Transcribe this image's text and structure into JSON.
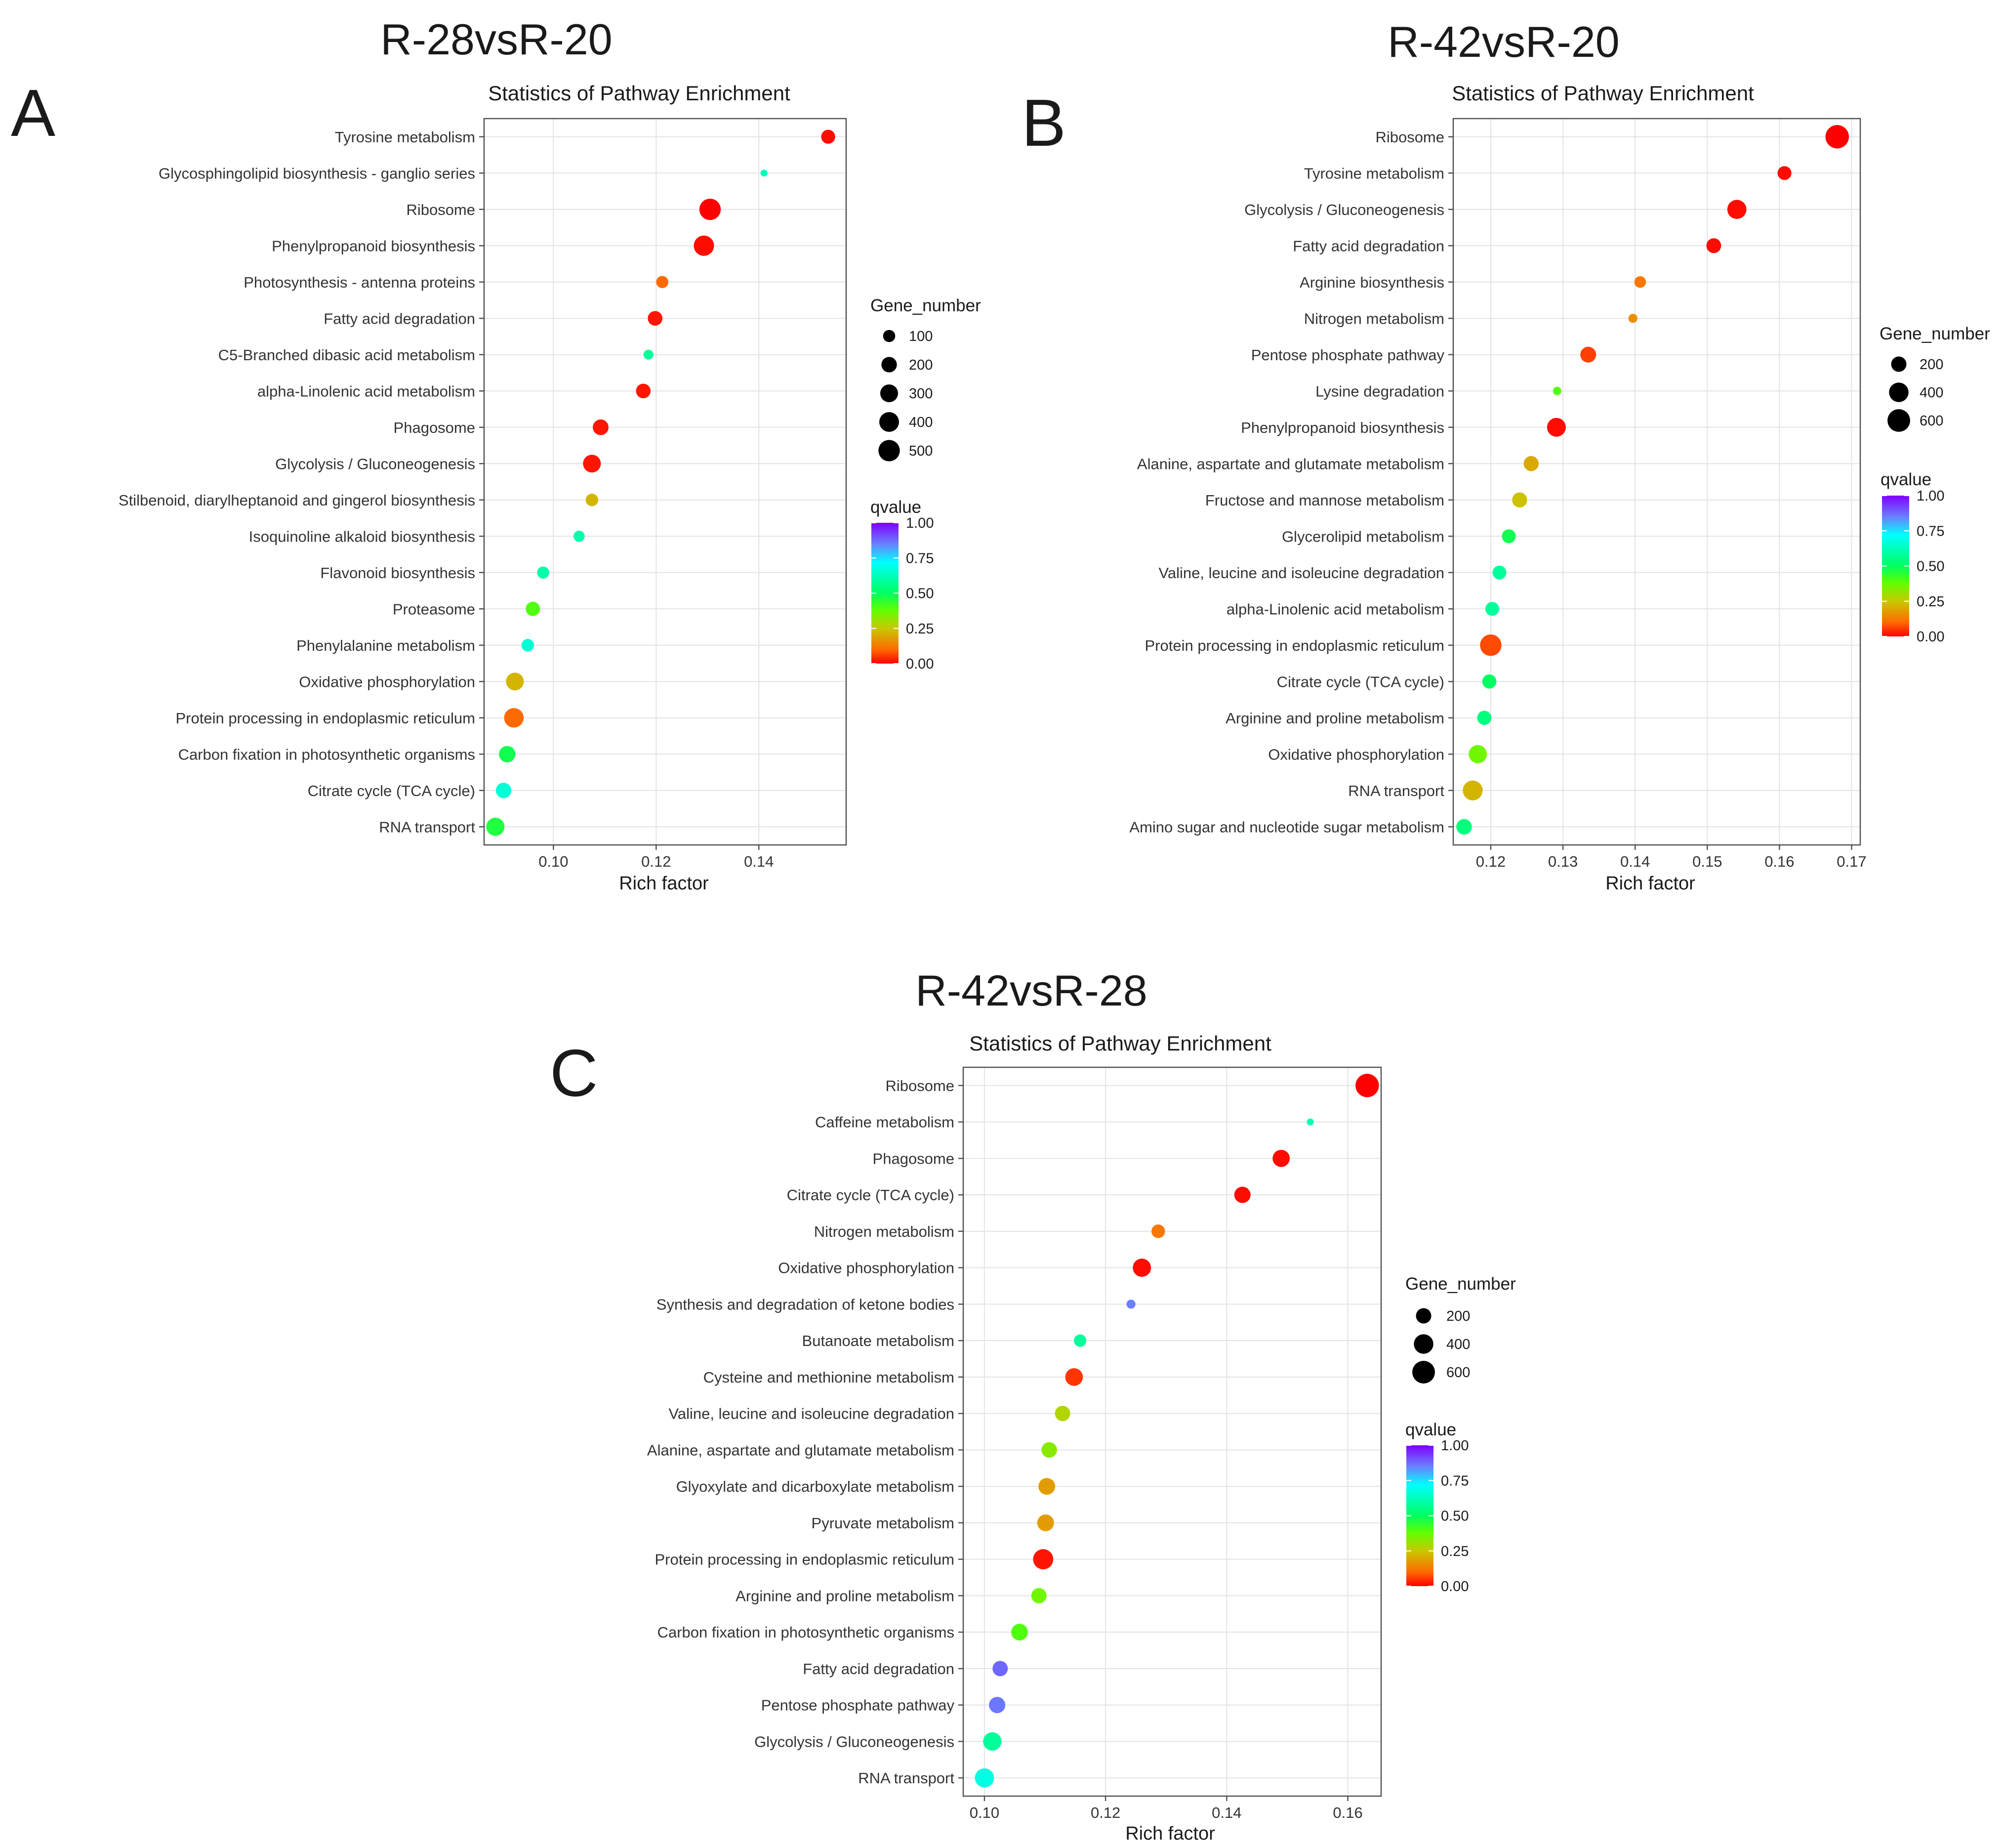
{
  "figure": {
    "background": "#ffffff",
    "legend_size_title": "Gene_number",
    "legend_color_title": "qvalue",
    "color_scale": {
      "stops": [
        "#ff0000",
        "#ff8000",
        "#80ff00",
        "#00ff80",
        "#00ffff",
        "#8060ff",
        "#8000ff"
      ],
      "labels": [
        "0.00",
        "0.25",
        "0.50",
        "0.75",
        "1.00"
      ]
    }
  },
  "chart_data": [
    {
      "type": "scatter",
      "panel_label": "A",
      "panel_title": "R-28vsR-20",
      "title": "Statistics of Pathway Enrichment",
      "xlabel": "Rich factor",
      "ylabel": "",
      "xlim": [
        0.0865,
        0.157
      ],
      "xticks": [
        0.1,
        0.12,
        0.14
      ],
      "xtick_labels": [
        "0.10",
        "0.12",
        "0.14"
      ],
      "size_legend": {
        "values": [
          100,
          200,
          300,
          400,
          500
        ],
        "labels": [
          "100",
          "200",
          "300",
          "400",
          "500"
        ]
      },
      "size_domain": [
        40,
        520
      ],
      "points": [
        {
          "pathway": "Tyrosine metabolism",
          "rich_factor": 0.1535,
          "gene_number": 150,
          "qvalue": 0.01
        },
        {
          "pathway": "Glycosphingolipid biosynthesis - ganglio series",
          "rich_factor": 0.141,
          "gene_number": 40,
          "qvalue": 0.62
        },
        {
          "pathway": "Ribosome",
          "rich_factor": 0.1305,
          "gene_number": 500,
          "qvalue": 0.0
        },
        {
          "pathway": "Phenylpropanoid biosynthesis",
          "rich_factor": 0.1293,
          "gene_number": 430,
          "qvalue": 0.01
        },
        {
          "pathway": "Photosynthesis - antenna proteins",
          "rich_factor": 0.1212,
          "gene_number": 100,
          "qvalue": 0.1
        },
        {
          "pathway": "Fatty acid degradation",
          "rich_factor": 0.1198,
          "gene_number": 170,
          "qvalue": 0.02
        },
        {
          "pathway": "C5-Branched dibasic acid metabolism",
          "rich_factor": 0.1185,
          "gene_number": 60,
          "qvalue": 0.58
        },
        {
          "pathway": "alpha-Linolenic acid metabolism",
          "rich_factor": 0.1175,
          "gene_number": 170,
          "qvalue": 0.02
        },
        {
          "pathway": "Phagosome",
          "rich_factor": 0.1092,
          "gene_number": 210,
          "qvalue": 0.02
        },
        {
          "pathway": "Glycolysis / Gluconeogenesis",
          "rich_factor": 0.1075,
          "gene_number": 300,
          "qvalue": 0.02
        },
        {
          "pathway": "Stilbenoid, diarylheptanoid and gingerol biosynthesis",
          "rich_factor": 0.1075,
          "gene_number": 110,
          "qvalue": 0.22
        },
        {
          "pathway": "Isoquinoline alkaloid biosynthesis",
          "rich_factor": 0.105,
          "gene_number": 80,
          "qvalue": 0.6
        },
        {
          "pathway": "Flavonoid biosynthesis",
          "rich_factor": 0.098,
          "gene_number": 100,
          "qvalue": 0.6
        },
        {
          "pathway": "Proteasome",
          "rich_factor": 0.096,
          "gene_number": 160,
          "qvalue": 0.4
        },
        {
          "pathway": "Phenylalanine metabolism",
          "rich_factor": 0.095,
          "gene_number": 110,
          "qvalue": 0.66
        },
        {
          "pathway": "Oxidative phosphorylation",
          "rich_factor": 0.0925,
          "gene_number": 300,
          "qvalue": 0.22
        },
        {
          "pathway": "Protein processing in endoplasmic reticulum",
          "rich_factor": 0.0923,
          "gene_number": 390,
          "qvalue": 0.1
        },
        {
          "pathway": "Carbon fixation in photosynthetic organisms",
          "rich_factor": 0.091,
          "gene_number": 240,
          "qvalue": 0.48
        },
        {
          "pathway": "Citrate cycle (TCA cycle)",
          "rich_factor": 0.0903,
          "gene_number": 200,
          "qvalue": 0.66
        },
        {
          "pathway": "RNA transport",
          "rich_factor": 0.0887,
          "gene_number": 320,
          "qvalue": 0.46
        }
      ]
    },
    {
      "type": "scatter",
      "panel_label": "B",
      "panel_title": "R-42vsR-20",
      "title": "Statistics of Pathway Enrichment",
      "xlabel": "Rich factor",
      "ylabel": "",
      "xlim": [
        0.1148,
        0.1712
      ],
      "xticks": [
        0.12,
        0.13,
        0.14,
        0.15,
        0.16,
        0.17
      ],
      "xtick_labels": [
        "0.12",
        "0.13",
        "0.14",
        "0.15",
        "0.16",
        "0.17"
      ],
      "size_legend": {
        "values": [
          200,
          400,
          600
        ],
        "labels": [
          "200",
          "400",
          "600"
        ]
      },
      "size_domain": [
        40,
        680
      ],
      "points": [
        {
          "pathway": "Ribosome",
          "rich_factor": 0.168,
          "gene_number": 660,
          "qvalue": 0.0
        },
        {
          "pathway": "Tyrosine metabolism",
          "rich_factor": 0.1607,
          "gene_number": 150,
          "qvalue": 0.01
        },
        {
          "pathway": "Glycolysis / Gluconeogenesis",
          "rich_factor": 0.1541,
          "gene_number": 380,
          "qvalue": 0.01
        },
        {
          "pathway": "Fatty acid degradation",
          "rich_factor": 0.1509,
          "gene_number": 180,
          "qvalue": 0.01
        },
        {
          "pathway": "Arginine biosynthesis",
          "rich_factor": 0.1407,
          "gene_number": 90,
          "qvalue": 0.12
        },
        {
          "pathway": "Nitrogen metabolism",
          "rich_factor": 0.1397,
          "gene_number": 50,
          "qvalue": 0.16
        },
        {
          "pathway": "Pentose phosphate pathway",
          "rich_factor": 0.1335,
          "gene_number": 220,
          "qvalue": 0.06
        },
        {
          "pathway": "Lysine degradation",
          "rich_factor": 0.1292,
          "gene_number": 45,
          "qvalue": 0.4
        },
        {
          "pathway": "Phenylpropanoid biosynthesis",
          "rich_factor": 0.1291,
          "gene_number": 360,
          "qvalue": 0.01
        },
        {
          "pathway": "Alanine, aspartate and glutamate metabolism",
          "rich_factor": 0.1256,
          "gene_number": 190,
          "qvalue": 0.2
        },
        {
          "pathway": "Fructose and mannose metabolism",
          "rich_factor": 0.124,
          "gene_number": 190,
          "qvalue": 0.24
        },
        {
          "pathway": "Glycerolipid metabolism",
          "rich_factor": 0.1225,
          "gene_number": 150,
          "qvalue": 0.48
        },
        {
          "pathway": "Valine, leucine and isoleucine degradation",
          "rich_factor": 0.1212,
          "gene_number": 150,
          "qvalue": 0.58
        },
        {
          "pathway": "alpha-Linolenic acid metabolism",
          "rich_factor": 0.1202,
          "gene_number": 150,
          "qvalue": 0.58
        },
        {
          "pathway": "Protein processing in endoplasmic reticulum",
          "rich_factor": 0.12,
          "gene_number": 520,
          "qvalue": 0.07
        },
        {
          "pathway": "Citrate cycle (TCA cycle)",
          "rich_factor": 0.1198,
          "gene_number": 160,
          "qvalue": 0.5
        },
        {
          "pathway": "Arginine and proline metabolism",
          "rich_factor": 0.1191,
          "gene_number": 160,
          "qvalue": 0.54
        },
        {
          "pathway": "Oxidative phosphorylation",
          "rich_factor": 0.1182,
          "gene_number": 330,
          "qvalue": 0.36
        },
        {
          "pathway": "RNA transport",
          "rich_factor": 0.1175,
          "gene_number": 420,
          "qvalue": 0.22
        },
        {
          "pathway": "Amino sugar and nucleotide sugar metabolism",
          "rich_factor": 0.1163,
          "gene_number": 210,
          "qvalue": 0.54
        }
      ]
    },
    {
      "type": "scatter",
      "panel_label": "C",
      "panel_title": "R-42vsR-28",
      "title": "Statistics of Pathway Enrichment",
      "xlabel": "Rich factor",
      "ylabel": "",
      "xlim": [
        0.0965,
        0.1655
      ],
      "xticks": [
        0.1,
        0.12,
        0.14,
        0.16
      ],
      "xtick_labels": [
        "0.10",
        "0.12",
        "0.14",
        "0.16"
      ],
      "size_legend": {
        "values": [
          200,
          400,
          600
        ],
        "labels": [
          "200",
          "400",
          "600"
        ]
      },
      "size_domain": [
        40,
        680
      ],
      "points": [
        {
          "pathway": "Ribosome",
          "rich_factor": 0.1632,
          "gene_number": 660,
          "qvalue": 0.0
        },
        {
          "pathway": "Caffeine metabolism",
          "rich_factor": 0.1538,
          "gene_number": 40,
          "qvalue": 0.62
        },
        {
          "pathway": "Phagosome",
          "rich_factor": 0.149,
          "gene_number": 280,
          "qvalue": 0.01
        },
        {
          "pathway": "Citrate cycle (TCA cycle)",
          "rich_factor": 0.1426,
          "gene_number": 240,
          "qvalue": 0.01
        },
        {
          "pathway": "Nitrogen metabolism",
          "rich_factor": 0.1287,
          "gene_number": 140,
          "qvalue": 0.12
        },
        {
          "pathway": "Oxidative phosphorylation",
          "rich_factor": 0.126,
          "gene_number": 330,
          "qvalue": 0.01
        },
        {
          "pathway": "Synthesis and degradation of ketone bodies",
          "rich_factor": 0.1242,
          "gene_number": 50,
          "qvalue": 0.85
        },
        {
          "pathway": "Butanoate metabolism",
          "rich_factor": 0.1158,
          "gene_number": 110,
          "qvalue": 0.58
        },
        {
          "pathway": "Cysteine and methionine metabolism",
          "rich_factor": 0.1148,
          "gene_number": 300,
          "qvalue": 0.05
        },
        {
          "pathway": "Valine, leucine and isoleucine degradation",
          "rich_factor": 0.1129,
          "gene_number": 200,
          "qvalue": 0.28
        },
        {
          "pathway": "Alanine, aspartate and glutamate metabolism",
          "rich_factor": 0.1107,
          "gene_number": 210,
          "qvalue": 0.33
        },
        {
          "pathway": "Glyoxylate and dicarboxylate metabolism",
          "rich_factor": 0.1103,
          "gene_number": 260,
          "qvalue": 0.18
        },
        {
          "pathway": "Pyruvate metabolism",
          "rich_factor": 0.1101,
          "gene_number": 260,
          "qvalue": 0.18
        },
        {
          "pathway": "Protein processing in endoplasmic reticulum",
          "rich_factor": 0.1097,
          "gene_number": 440,
          "qvalue": 0.02
        },
        {
          "pathway": "Arginine and proline metabolism",
          "rich_factor": 0.109,
          "gene_number": 200,
          "qvalue": 0.36
        },
        {
          "pathway": "Carbon fixation in photosynthetic organisms",
          "rich_factor": 0.1058,
          "gene_number": 260,
          "qvalue": 0.4
        },
        {
          "pathway": "Fatty acid degradation",
          "rich_factor": 0.1026,
          "gene_number": 200,
          "qvalue": 0.88
        },
        {
          "pathway": "Pentose phosphate pathway",
          "rich_factor": 0.1021,
          "gene_number": 240,
          "qvalue": 0.86
        },
        {
          "pathway": "Glycolysis / Gluconeogenesis",
          "rich_factor": 0.1013,
          "gene_number": 340,
          "qvalue": 0.58
        },
        {
          "pathway": "RNA transport",
          "rich_factor": 0.1,
          "gene_number": 380,
          "qvalue": 0.68
        }
      ]
    }
  ]
}
